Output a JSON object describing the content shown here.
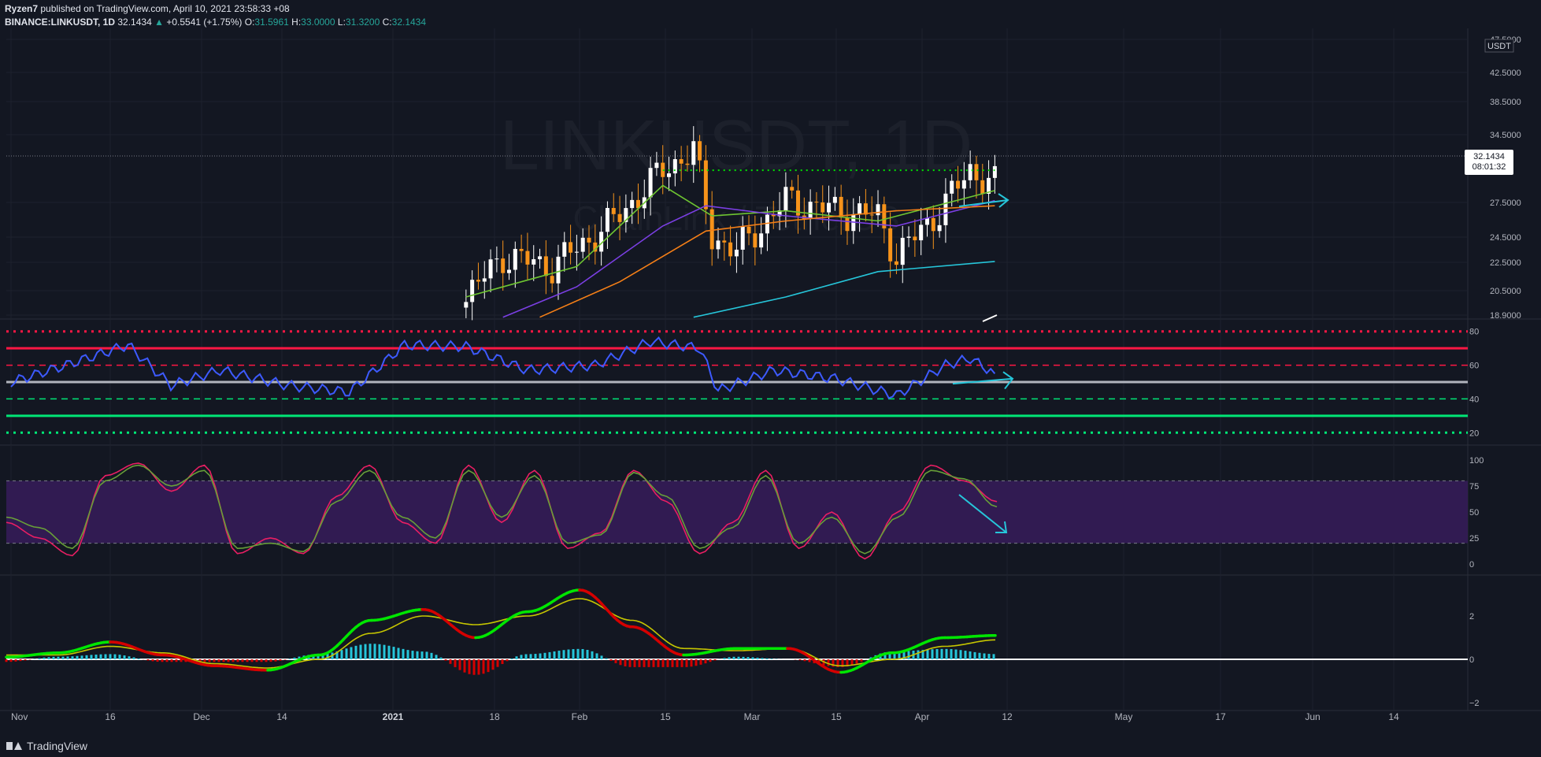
{
  "header": {
    "author": "Ryzen7",
    "published": "published on TradingView.com, April 10, 2021 23:58:33 +08",
    "symbol": "BINANCE:LINKUSDT, 1D",
    "last": "32.1434",
    "change_arrow": "▲",
    "change": "+0.5541 (+1.75%)",
    "o_label": "O:",
    "o": "31.5961",
    "h_label": "H:",
    "h": "33.0000",
    "l_label": "L:",
    "l": "31.3200",
    "c_label": "C:",
    "c": "32.1434"
  },
  "watermark": {
    "line1": "LINKUSDT, 1D",
    "line2": "ChainLink / TetherUS"
  },
  "price_axis": {
    "currency": "USDT",
    "ticks": [
      "47.5000",
      "42.5000",
      "38.5000",
      "34.5000",
      "27.5000",
      "24.5000",
      "22.5000",
      "20.5000",
      "18.9000"
    ],
    "last_price": "32.1434",
    "countdown": "08:01:32"
  },
  "rsi_axis": {
    "ticks": [
      "80",
      "60",
      "40",
      "20"
    ]
  },
  "stoch_axis": {
    "ticks": [
      "100",
      "75",
      "50",
      "25",
      "0"
    ]
  },
  "macd_axis": {
    "ticks": [
      "2",
      "0",
      "−2"
    ]
  },
  "time_axis": {
    "ticks": [
      "Nov",
      "16",
      "Dec",
      "14",
      "2021",
      "18",
      "Feb",
      "15",
      "Mar",
      "15",
      "Apr",
      "12",
      "May",
      "17",
      "Jun",
      "14"
    ]
  },
  "footer": {
    "brand": "TradingView",
    "logo_icon": "tradingview-logo-icon"
  },
  "colors": {
    "background": "#131722",
    "up_candle": "#ffffff",
    "down_candle": "#f7931a",
    "ema_fast": "#6ec531",
    "ema_mid": "#7b3fe4",
    "ema_slow": "#f57f17",
    "ema_long": "#26c6da",
    "rsi": "#3d5afe",
    "rsi_overbought": "#ff1744",
    "rsi_oversold": "#00e676",
    "stoch_k": "#e91e63",
    "stoch_d": "#689f38",
    "stoch_band": "#311b52",
    "macd_up": "#00e600",
    "macd_down": "#d50000",
    "signal": "#c6c600",
    "hist_pos": "#26c6da",
    "hist_neg": "#d50000",
    "annotation_arrow": "#26c6da"
  },
  "chart_data": [
    {
      "type": "candlestick",
      "title": "BINANCE:LINKUSDT, 1D",
      "ylabel": "USDT",
      "ylim": [
        18.9,
        47.5
      ],
      "resistance_level": 33.5,
      "last_close": 32.1434,
      "ohlc_sample": [
        {
          "date": "2021-01-14",
          "close": 21.0
        },
        {
          "date": "2021-01-20",
          "close": 25.0
        },
        {
          "date": "2021-01-28",
          "close": 24.0
        },
        {
          "date": "2021-02-07",
          "close": 28.5
        },
        {
          "date": "2021-02-15",
          "close": 33.5
        },
        {
          "date": "2021-02-20",
          "close": 35.5
        },
        {
          "date": "2021-02-23",
          "close": 27.0
        },
        {
          "date": "2021-02-27",
          "close": 25.5
        },
        {
          "date": "2021-03-07",
          "close": 30.5
        },
        {
          "date": "2021-03-15",
          "close": 29.5
        },
        {
          "date": "2021-03-22",
          "close": 29.0
        },
        {
          "date": "2021-03-25",
          "close": 25.0
        },
        {
          "date": "2021-04-01",
          "close": 29.5
        },
        {
          "date": "2021-04-06",
          "close": 33.5
        },
        {
          "date": "2021-04-10",
          "close": 32.1434
        }
      ],
      "series": [
        {
          "values": [
            [
              "2021-01-14",
              21.0
            ],
            [
              "2021-02-01",
              24.0
            ],
            [
              "2021-02-15",
              32.0
            ],
            [
              "2021-02-23",
              29.0
            ],
            [
              "2021-03-07",
              29.5
            ],
            [
              "2021-03-22",
              28.5
            ],
            [
              "2021-04-10",
              31.5
            ]
          ]
        },
        {
          "values": [
            [
              "2021-01-20",
              19.0
            ],
            [
              "2021-02-01",
              22.0
            ],
            [
              "2021-02-15",
              28.0
            ],
            [
              "2021-02-22",
              30.0
            ],
            [
              "2021-03-07",
              29.0
            ],
            [
              "2021-03-25",
              28.0
            ],
            [
              "2021-04-10",
              30.5
            ]
          ]
        },
        {
          "values": [
            [
              "2021-01-26",
              19.0
            ],
            [
              "2021-02-08",
              22.5
            ],
            [
              "2021-02-22",
              27.5
            ],
            [
              "2021-03-07",
              28.5
            ],
            [
              "2021-03-25",
              29.5
            ],
            [
              "2021-04-10",
              30.0
            ]
          ]
        },
        {
          "values": [
            [
              "2021-02-20",
              19.0
            ],
            [
              "2021-03-07",
              21.0
            ],
            [
              "2021-03-22",
              23.5
            ],
            [
              "2021-04-10",
              24.5
            ]
          ]
        }
      ]
    },
    {
      "type": "line",
      "levels": [
        80,
        70,
        60,
        50,
        40,
        30,
        20
      ],
      "ylim": [
        15,
        85
      ],
      "x": [
        "2020-11-01",
        "2020-11-10",
        "2020-11-20",
        "2020-11-27",
        "2020-12-05",
        "2020-12-16",
        "2020-12-26",
        "2021-01-04",
        "2021-01-14",
        "2021-01-24",
        "2021-02-04",
        "2021-02-13",
        "2021-02-21",
        "2021-02-24",
        "2021-03-05",
        "2021-03-15",
        "2021-03-25",
        "2021-04-02",
        "2021-04-06",
        "2021-04-10"
      ],
      "values": [
        50,
        60,
        72,
        48,
        57,
        48,
        44,
        72,
        71,
        57,
        60,
        74,
        70,
        45,
        57,
        52,
        42,
        60,
        64,
        55
      ]
    },
    {
      "type": "line",
      "ylim": [
        0,
        100
      ],
      "band": [
        20,
        80
      ],
      "series": [
        {
          "values": [
            40,
            25,
            8,
            85,
            97,
            70,
            95,
            10,
            25,
            10,
            65,
            95,
            40,
            20,
            95,
            40,
            90,
            15,
            30,
            90,
            60,
            10,
            40,
            90,
            15,
            50,
            5,
            50,
            95,
            80,
            60
          ]
        },
        {
          "values": [
            45,
            35,
            15,
            80,
            95,
            75,
            90,
            15,
            20,
            12,
            60,
            90,
            45,
            25,
            90,
            45,
            85,
            20,
            28,
            88,
            65,
            15,
            35,
            85,
            20,
            45,
            10,
            45,
            90,
            82,
            55
          ]
        }
      ]
    },
    {
      "type": "line",
      "ylim": [
        -2,
        3.3
      ],
      "series": [
        {
          "values": [
            0.1,
            0.3,
            0.8,
            0.2,
            -0.3,
            -0.5,
            0.2,
            1.8,
            2.3,
            1.0,
            2.2,
            3.2,
            1.5,
            0.2,
            0.5,
            0.5,
            -0.6,
            0.3,
            1.0,
            1.1
          ]
        },
        {
          "values": [
            0.2,
            0.2,
            0.6,
            0.3,
            -0.2,
            -0.4,
            0.0,
            1.2,
            2.0,
            1.6,
            2.0,
            2.8,
            1.8,
            0.5,
            0.4,
            0.5,
            -0.3,
            0.0,
            0.6,
            0.9
          ]
        }
      ]
    }
  ]
}
